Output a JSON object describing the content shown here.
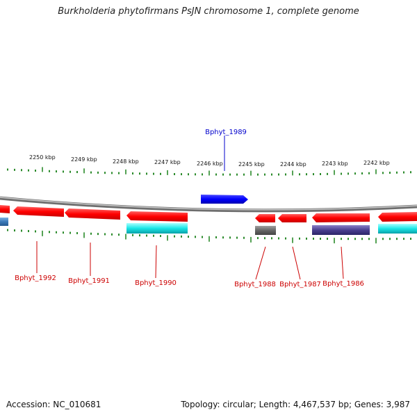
{
  "title": "Burkholderia phytofirmans PsJN chromosome 1, complete genome",
  "footer": {
    "accession": "Accession: NC_010681",
    "summary": "Topology: circular; Length: 4,467,537 bp; Genes: 3,987"
  },
  "colors": {
    "backbone": "#8a8a8a",
    "tick": "#2a8a2a",
    "forward_gene": "#0000ff",
    "reverse_gene": "#ff1010",
    "cyan_feature": "#19e6e6",
    "gray_feature": "#6a6a6a",
    "purple_feature": "#4a3f90",
    "steelblue_feature": "#3a7ab8",
    "label_red": "#cc0000",
    "label_blue": "#0000cc"
  },
  "scale_labels": [
    "2250 kbp",
    "2249 kbp",
    "2248 kbp",
    "2247 kbp",
    "2246 kbp",
    "2245 kbp",
    "2244 kbp",
    "2243 kbp",
    "2242 kbp"
  ],
  "gene_labels": [
    "Bphyt_1989",
    "Bphyt_1992",
    "Bphyt_1991",
    "Bphyt_1990",
    "Bphyt_1988",
    "Bphyt_1987",
    "Bphyt_1986"
  ]
}
